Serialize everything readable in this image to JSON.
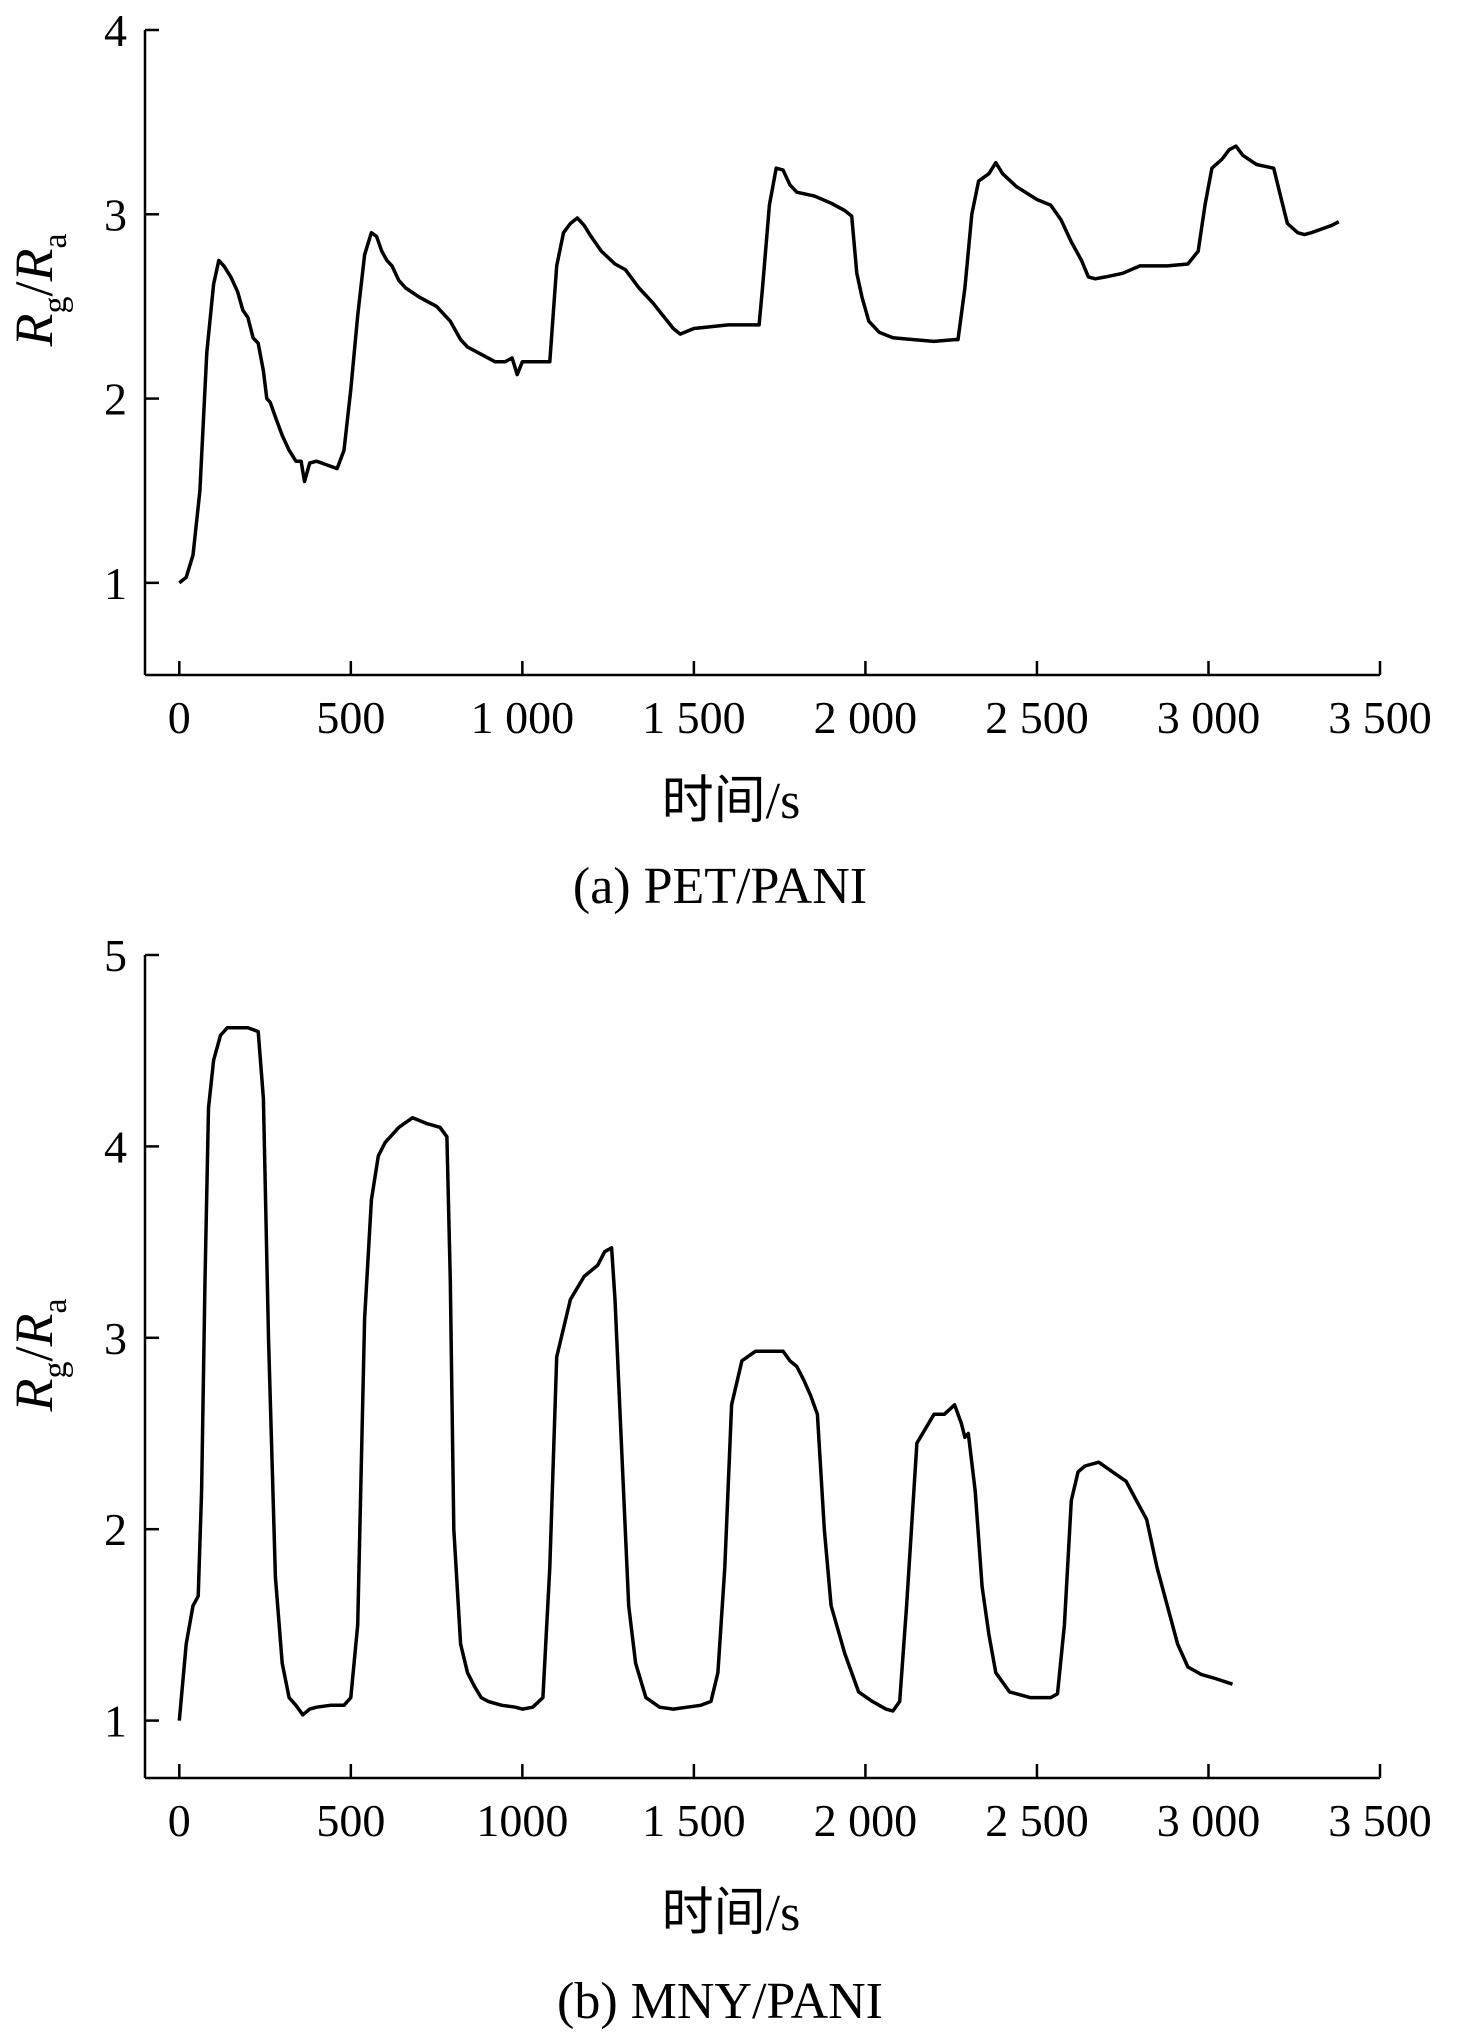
{
  "chart_data": [
    {
      "type": "line",
      "caption": "(a) PET/PANI",
      "xlabel": "时间/s",
      "ylabel": {
        "r1": "R",
        "s1": "g",
        "slash": "/",
        "r2": "R",
        "s2": "a"
      },
      "xlim": [
        -100,
        3500
      ],
      "ylim": [
        0.5,
        4
      ],
      "xticks": [
        0,
        500,
        1000,
        1500,
        2000,
        2500,
        3000,
        3500
      ],
      "xtick_labels": [
        "0",
        "500",
        "1 000",
        "1 500",
        "2 000",
        "2 500",
        "3 000",
        "3 500"
      ],
      "yticks": [
        1,
        2,
        3,
        4
      ],
      "ytick_labels": [
        "1",
        "2",
        "3",
        "4"
      ],
      "grid": false,
      "color": "#000000",
      "series": [
        {
          "x": [
            0,
            20,
            40,
            60,
            80,
            100,
            115,
            130,
            150,
            170,
            185,
            200,
            215,
            230,
            245,
            255,
            265,
            280,
            300,
            320,
            340,
            355,
            365,
            380,
            400,
            430,
            460,
            480,
            500,
            520,
            540,
            560,
            575,
            590,
            605,
            620,
            640,
            660,
            700,
            750,
            790,
            820,
            840,
            880,
            920,
            950,
            970,
            985,
            1000,
            1030,
            1060,
            1080,
            1100,
            1120,
            1140,
            1160,
            1180,
            1200,
            1230,
            1270,
            1300,
            1340,
            1380,
            1410,
            1440,
            1460,
            1500,
            1600,
            1690,
            1700,
            1720,
            1740,
            1760,
            1780,
            1800,
            1850,
            1900,
            1940,
            1960,
            1975,
            1990,
            2010,
            2040,
            2080,
            2140,
            2200,
            2260,
            2270,
            2290,
            2310,
            2330,
            2360,
            2380,
            2400,
            2440,
            2500,
            2540,
            2570,
            2600,
            2630,
            2650,
            2670,
            2700,
            2750,
            2800,
            2830,
            2880,
            2940,
            2970,
            2990,
            3010,
            3040,
            3060,
            3080,
            3100,
            3140,
            3190,
            3210,
            3230,
            3260,
            3280,
            3300,
            3330,
            3360,
            3380
          ],
          "y": [
            1.0,
            1.03,
            1.15,
            1.5,
            2.25,
            2.62,
            2.75,
            2.72,
            2.66,
            2.58,
            2.48,
            2.44,
            2.33,
            2.3,
            2.15,
            2.0,
            1.98,
            1.9,
            1.8,
            1.72,
            1.66,
            1.66,
            1.55,
            1.65,
            1.66,
            1.64,
            1.62,
            1.72,
            2.05,
            2.45,
            2.78,
            2.9,
            2.88,
            2.8,
            2.75,
            2.72,
            2.64,
            2.6,
            2.55,
            2.5,
            2.42,
            2.32,
            2.28,
            2.24,
            2.2,
            2.2,
            2.22,
            2.13,
            2.2,
            2.2,
            2.2,
            2.2,
            2.72,
            2.9,
            2.95,
            2.98,
            2.94,
            2.88,
            2.8,
            2.73,
            2.7,
            2.6,
            2.52,
            2.45,
            2.38,
            2.35,
            2.38,
            2.4,
            2.4,
            2.6,
            3.05,
            3.25,
            3.24,
            3.16,
            3.12,
            3.1,
            3.06,
            3.02,
            2.99,
            2.68,
            2.55,
            2.42,
            2.36,
            2.33,
            2.32,
            2.31,
            2.32,
            2.32,
            2.6,
            3.0,
            3.18,
            3.22,
            3.28,
            3.22,
            3.15,
            3.08,
            3.05,
            2.97,
            2.85,
            2.75,
            2.66,
            2.65,
            2.66,
            2.68,
            2.72,
            2.72,
            2.72,
            2.73,
            2.8,
            3.05,
            3.25,
            3.3,
            3.35,
            3.37,
            3.32,
            3.27,
            3.25,
            3.1,
            2.95,
            2.9,
            2.89,
            2.9,
            2.92,
            2.94,
            2.96
          ]
        }
      ]
    },
    {
      "type": "line",
      "caption": "(b) MNY/PANI",
      "xlabel": "时间/s",
      "ylabel": {
        "r1": "R",
        "s1": "g",
        "slash": "/",
        "r2": "R",
        "s2": "a"
      },
      "xlim": [
        -100,
        3500
      ],
      "ylim": [
        0.7,
        5
      ],
      "xticks": [
        0,
        500,
        1000,
        1500,
        2000,
        2500,
        3000,
        3500
      ],
      "xtick_labels": [
        "0",
        "500",
        "1000",
        "1 500",
        "2 000",
        "2 500",
        "3 000",
        "3 500"
      ],
      "yticks": [
        1,
        2,
        3,
        4,
        5
      ],
      "ytick_labels": [
        "1",
        "2",
        "3",
        "4",
        "5"
      ],
      "grid": false,
      "color": "#000000",
      "series": [
        {
          "x": [
            0,
            20,
            40,
            55,
            65,
            75,
            85,
            100,
            120,
            140,
            170,
            200,
            230,
            245,
            260,
            280,
            300,
            320,
            340,
            360,
            380,
            400,
            440,
            480,
            500,
            520,
            540,
            560,
            580,
            600,
            640,
            680,
            720,
            760,
            780,
            790,
            800,
            820,
            840,
            860,
            880,
            900,
            940,
            980,
            1000,
            1030,
            1060,
            1080,
            1100,
            1140,
            1180,
            1220,
            1240,
            1260,
            1270,
            1290,
            1310,
            1330,
            1360,
            1400,
            1440,
            1480,
            1520,
            1550,
            1570,
            1590,
            1610,
            1640,
            1680,
            1720,
            1760,
            1780,
            1800,
            1820,
            1840,
            1860,
            1880,
            1900,
            1940,
            1980,
            2020,
            2050,
            2060,
            2080,
            2100,
            2120,
            2150,
            2200,
            2230,
            2260,
            2280,
            2290,
            2300,
            2320,
            2340,
            2360,
            2380,
            2420,
            2480,
            2540,
            2560,
            2580,
            2600,
            2620,
            2640,
            2680,
            2720,
            2760,
            2790,
            2820,
            2850,
            2880,
            2910,
            2940,
            2980,
            3020,
            3070
          ],
          "y": [
            1.0,
            1.4,
            1.6,
            1.65,
            2.2,
            3.3,
            4.2,
            4.45,
            4.58,
            4.62,
            4.62,
            4.62,
            4.6,
            4.25,
            3.0,
            1.75,
            1.3,
            1.12,
            1.08,
            1.03,
            1.06,
            1.07,
            1.08,
            1.08,
            1.12,
            1.5,
            3.1,
            3.72,
            3.95,
            4.02,
            4.1,
            4.15,
            4.12,
            4.1,
            4.05,
            3.3,
            2.0,
            1.4,
            1.25,
            1.18,
            1.12,
            1.1,
            1.08,
            1.07,
            1.06,
            1.07,
            1.12,
            1.8,
            2.9,
            3.2,
            3.32,
            3.38,
            3.45,
            3.47,
            3.2,
            2.4,
            1.6,
            1.3,
            1.12,
            1.07,
            1.06,
            1.07,
            1.08,
            1.1,
            1.25,
            1.8,
            2.65,
            2.88,
            2.93,
            2.93,
            2.93,
            2.88,
            2.85,
            2.78,
            2.7,
            2.6,
            2.0,
            1.6,
            1.35,
            1.15,
            1.1,
            1.07,
            1.06,
            1.05,
            1.1,
            1.6,
            2.45,
            2.6,
            2.6,
            2.65,
            2.55,
            2.48,
            2.5,
            2.2,
            1.7,
            1.45,
            1.25,
            1.15,
            1.12,
            1.12,
            1.14,
            1.5,
            2.15,
            2.3,
            2.33,
            2.35,
            2.3,
            2.25,
            2.15,
            2.05,
            1.8,
            1.6,
            1.4,
            1.28,
            1.24,
            1.22,
            1.19
          ]
        }
      ]
    }
  ]
}
